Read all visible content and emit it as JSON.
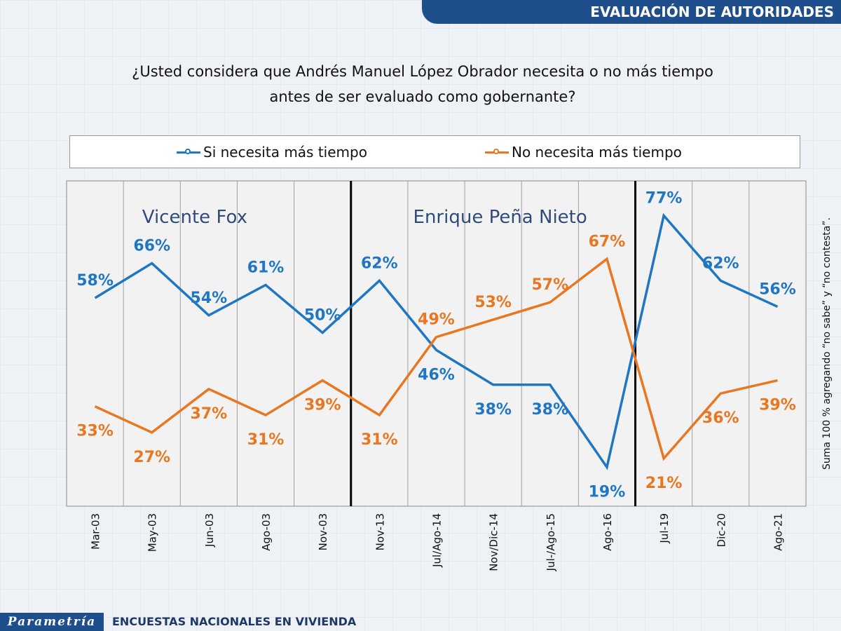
{
  "header": {
    "title": "EVALUACIÓN DE AUTORIDADES"
  },
  "question": {
    "line1": "¿Usted considera que Andrés Manuel López Obrador necesita o no más tiempo",
    "line2": "antes de ser evaluado como gobernante?"
  },
  "colors": {
    "si": "#1f77c4",
    "no": "#e87722",
    "period_label": "#2e4a7a",
    "header_bg": "#1f4e8c"
  },
  "chart_data": {
    "type": "line",
    "categories": [
      "Mar-03",
      "May-03",
      "Jun-03",
      "Ago-03",
      "Nov-03",
      "Nov-13",
      "Jul/Ago-14",
      "Nov/Dic-14",
      "Jul-/Ago-15",
      "Ago-16",
      "Jul-19",
      "Dic-20",
      "Ago-21"
    ],
    "series": [
      {
        "name": "Si necesita más tiempo",
        "values": [
          58,
          66,
          54,
          61,
          50,
          62,
          46,
          38,
          38,
          19,
          77,
          62,
          56
        ]
      },
      {
        "name": "No necesita más tiempo",
        "values": [
          33,
          27,
          37,
          31,
          39,
          31,
          49,
          53,
          57,
          67,
          21,
          36,
          39
        ]
      }
    ],
    "value_suffix": "%",
    "periods": [
      {
        "label": "Vicente Fox",
        "start": 0,
        "end": 4
      },
      {
        "label": "Enrique Peña Nieto",
        "start": 5,
        "end": 9
      },
      {
        "label": "",
        "start": 10,
        "end": 12
      }
    ],
    "period_separators_after": [
      4,
      9
    ],
    "ylim": [
      10,
      85
    ],
    "grid": "vertical",
    "legend": "top",
    "xlabel": "",
    "ylabel": "",
    "title": ""
  },
  "side_note": "Suma 100 % agregando “no sabe” y “no contesta”.",
  "footer": {
    "logo": "Parametría",
    "text": "ENCUESTAS NACIONALES EN VIVIENDA"
  }
}
